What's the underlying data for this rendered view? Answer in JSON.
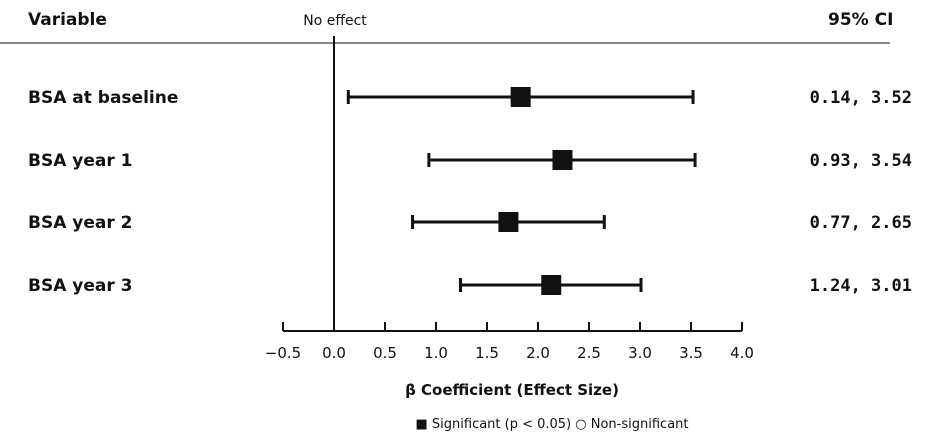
{
  "chart_data": {
    "type": "forest",
    "headers": {
      "variable": "Variable",
      "ci": "95% CI",
      "reference": "No effect"
    },
    "xlabel": "β Coefficient (Effect Size)",
    "xlim": [
      -0.5,
      4.0
    ],
    "xticks": [
      -0.5,
      0.0,
      0.5,
      1.0,
      1.5,
      2.0,
      2.5,
      3.0,
      3.5,
      4.0
    ],
    "xtick_labels": [
      "−0.5",
      "0.0",
      "0.5",
      "1.0",
      "1.5",
      "2.0",
      "2.5",
      "3.0",
      "3.5",
      "4.0"
    ],
    "reference_value": 0,
    "rows": [
      {
        "label": "BSA at baseline",
        "estimate": 1.83,
        "lower": 0.14,
        "upper": 3.52,
        "ci_text": "0.14, 3.52",
        "significant": true
      },
      {
        "label": "BSA year 1",
        "estimate": 2.24,
        "lower": 0.93,
        "upper": 3.54,
        "ci_text": "0.93, 3.54",
        "significant": true
      },
      {
        "label": "BSA year 2",
        "estimate": 1.71,
        "lower": 0.77,
        "upper": 2.65,
        "ci_text": "0.77, 2.65",
        "significant": true
      },
      {
        "label": "BSA year 3",
        "estimate": 2.13,
        "lower": 1.24,
        "upper": 3.01,
        "ci_text": "1.24, 3.01",
        "significant": true
      }
    ],
    "legend": "■ Significant (p < 0.05) ○ Non-significant",
    "color": "#111111"
  }
}
